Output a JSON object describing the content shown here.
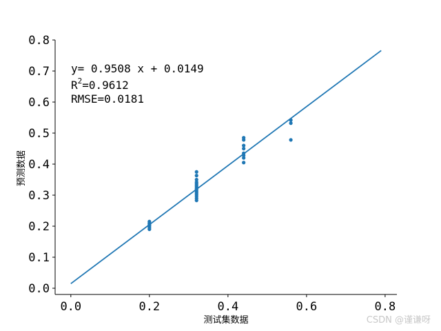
{
  "chart_data": {
    "type": "scatter",
    "xlabel": "测试集数据",
    "ylabel": "预测数据",
    "xlim": [
      -0.04,
      0.83
    ],
    "ylim": [
      -0.02,
      0.8
    ],
    "x_ticks": [
      "0.0",
      "0.2",
      "0.4",
      "0.6",
      "0.8"
    ],
    "y_ticks": [
      "0.0",
      "0.1",
      "0.2",
      "0.3",
      "0.4",
      "0.5",
      "0.6",
      "0.7",
      "0.8"
    ],
    "grid": false,
    "point_color": "#1f77b4",
    "line_color": "#1f77b4",
    "points": [
      {
        "x": 0.2,
        "y": 0.19
      },
      {
        "x": 0.2,
        "y": 0.195
      },
      {
        "x": 0.2,
        "y": 0.2
      },
      {
        "x": 0.2,
        "y": 0.203
      },
      {
        "x": 0.2,
        "y": 0.207
      },
      {
        "x": 0.2,
        "y": 0.21
      },
      {
        "x": 0.2,
        "y": 0.215
      },
      {
        "x": 0.32,
        "y": 0.283
      },
      {
        "x": 0.32,
        "y": 0.29
      },
      {
        "x": 0.32,
        "y": 0.297
      },
      {
        "x": 0.32,
        "y": 0.303
      },
      {
        "x": 0.32,
        "y": 0.308
      },
      {
        "x": 0.32,
        "y": 0.313
      },
      {
        "x": 0.32,
        "y": 0.318
      },
      {
        "x": 0.32,
        "y": 0.322
      },
      {
        "x": 0.32,
        "y": 0.327
      },
      {
        "x": 0.32,
        "y": 0.332
      },
      {
        "x": 0.32,
        "y": 0.337
      },
      {
        "x": 0.32,
        "y": 0.342
      },
      {
        "x": 0.32,
        "y": 0.35
      },
      {
        "x": 0.32,
        "y": 0.363
      },
      {
        "x": 0.32,
        "y": 0.375
      },
      {
        "x": 0.44,
        "y": 0.405
      },
      {
        "x": 0.44,
        "y": 0.42
      },
      {
        "x": 0.44,
        "y": 0.428
      },
      {
        "x": 0.44,
        "y": 0.435
      },
      {
        "x": 0.44,
        "y": 0.45
      },
      {
        "x": 0.44,
        "y": 0.46
      },
      {
        "x": 0.44,
        "y": 0.478
      },
      {
        "x": 0.44,
        "y": 0.485
      },
      {
        "x": 0.56,
        "y": 0.478
      },
      {
        "x": 0.56,
        "y": 0.532
      },
      {
        "x": 0.56,
        "y": 0.542
      }
    ],
    "fit_line": {
      "slope": 0.9508,
      "intercept": 0.0149,
      "x_range": [
        0.0,
        0.79
      ]
    },
    "annotations": {
      "equation": "y= 0.9508 x + 0.0149",
      "r2_base": "R",
      "r2_sup": "2",
      "r2_value": "=0.9612",
      "rmse": "RMSE=0.0181"
    }
  },
  "watermark": "CSDN @谨谦呀"
}
